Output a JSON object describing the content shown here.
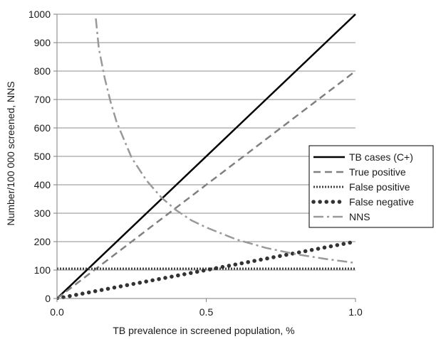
{
  "chart_data": {
    "type": "line",
    "title": "",
    "xlabel": "TB prevalence in screened population, %",
    "ylabel": "Number/100 000 screened,  NNS",
    "xlim": [
      0.0,
      1.0
    ],
    "ylim": [
      0,
      1000
    ],
    "x_ticks": [
      "0.0",
      "0.5",
      "1.0"
    ],
    "x_tick_values": [
      0.0,
      0.5,
      1.0
    ],
    "y_ticks": [
      "0",
      "100",
      "200",
      "300",
      "400",
      "500",
      "600",
      "700",
      "800",
      "900",
      "1000"
    ],
    "y_tick_values": [
      0,
      100,
      200,
      300,
      400,
      500,
      600,
      700,
      800,
      900,
      1000
    ],
    "grid": "horizontal",
    "legend_position": "right",
    "series": [
      {
        "name": "TB cases (C+)",
        "style": "solid",
        "color": "#000000",
        "x": [
          0.0,
          1.0
        ],
        "y": [
          0,
          1000
        ]
      },
      {
        "name": "True positive",
        "style": "dashed",
        "color": "#808080",
        "x": [
          0.0,
          1.0
        ],
        "y": [
          0,
          800
        ]
      },
      {
        "name": "False positive",
        "style": "dotted",
        "color": "#404040",
        "x": [
          0.0,
          1.0
        ],
        "y": [
          105,
          105
        ]
      },
      {
        "name": "False negative",
        "style": "round-dotted",
        "color": "#333333",
        "x": [
          0.0,
          1.0
        ],
        "y": [
          0,
          200
        ]
      },
      {
        "name": "NNS",
        "style": "dash-dot",
        "color": "#999999",
        "x": [
          0.13,
          0.14,
          0.16,
          0.18,
          0.2,
          0.25,
          0.3,
          0.35,
          0.4,
          0.45,
          0.5,
          0.6,
          0.7,
          0.8,
          0.9,
          1.0
        ],
        "y": [
          985,
          880,
          775,
          690,
          620,
          495,
          415,
          355,
          310,
          275,
          250,
          208,
          178,
          156,
          139,
          125
        ]
      }
    ]
  }
}
